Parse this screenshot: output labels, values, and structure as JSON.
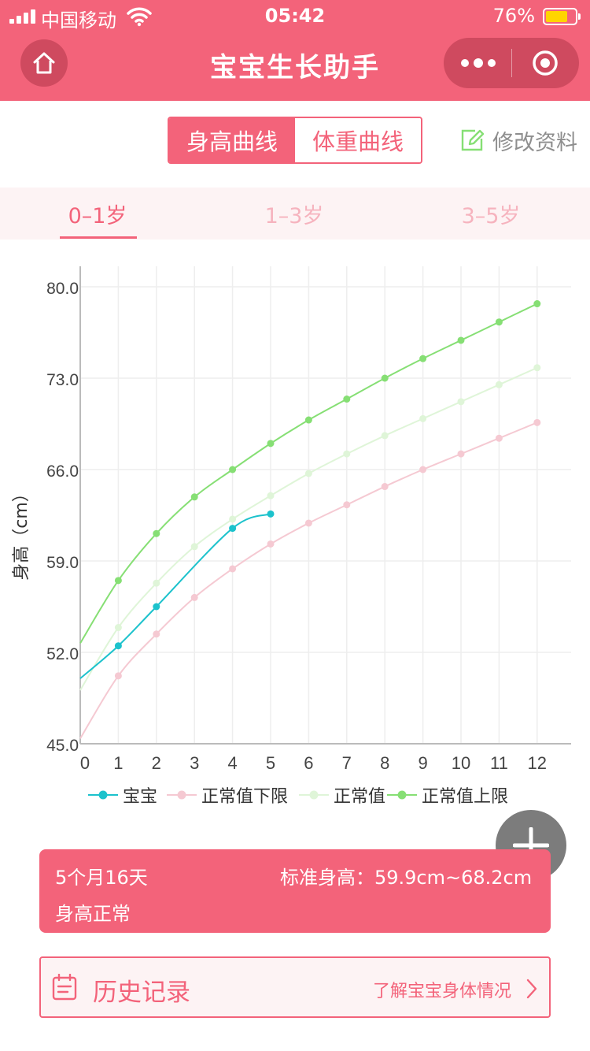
{
  "status_bar": {
    "carrier": "中国移动",
    "time": "05:42",
    "battery": "76%"
  },
  "nav": {
    "title": "宝宝生长助手"
  },
  "segment": {
    "height_label": "身高曲线",
    "weight_label": "体重曲线"
  },
  "edit_label": "修改资料",
  "age_tabs": [
    "0–1岁",
    "1–3岁",
    "3–5岁"
  ],
  "info": {
    "age": "5个月16天",
    "standard": "标准身高：59.9cm~68.2cm",
    "status": "身高正常"
  },
  "history": {
    "title": "历史记录",
    "hint": "了解宝宝身体情况"
  },
  "colors": {
    "accent": "#f3637a",
    "baby": "#1cc2cc",
    "lower": "#f5c9d2",
    "normal": "#dff5d8",
    "upper": "#86df74"
  },
  "chart_data": {
    "type": "line",
    "ylabel": "身高（cm）",
    "xlabel": "",
    "x": [
      0,
      1,
      2,
      3,
      4,
      5,
      6,
      7,
      8,
      9,
      10,
      11,
      12
    ],
    "ylim": [
      45.0,
      80.0
    ],
    "yticks": [
      "45.0",
      "52.0",
      "59.0",
      "66.0",
      "73.0",
      "80.0"
    ],
    "grid": true,
    "legend": "bottom",
    "series": [
      {
        "name": "宝宝",
        "x": [
          0,
          1,
          2,
          4,
          5
        ],
        "values": [
          50.0,
          52.5,
          55.5,
          61.5,
          62.6
        ]
      },
      {
        "name": "正常值下限",
        "x": [
          0,
          1,
          2,
          3,
          4,
          5,
          6,
          7,
          8,
          9,
          10,
          11,
          12
        ],
        "values": [
          45.4,
          50.2,
          53.4,
          56.2,
          58.4,
          60.3,
          61.9,
          63.3,
          64.7,
          66.0,
          67.2,
          68.4,
          69.6
        ]
      },
      {
        "name": "正常值",
        "x": [
          0,
          1,
          2,
          3,
          4,
          5,
          6,
          7,
          8,
          9,
          10,
          11,
          12
        ],
        "values": [
          49.1,
          53.9,
          57.3,
          60.1,
          62.2,
          64.0,
          65.7,
          67.2,
          68.6,
          69.9,
          71.2,
          72.5,
          73.8
        ]
      },
      {
        "name": "正常值上限",
        "x": [
          0,
          1,
          2,
          3,
          4,
          5,
          6,
          7,
          8,
          9,
          10,
          11,
          12
        ],
        "values": [
          52.7,
          57.5,
          61.1,
          63.9,
          66.0,
          68.0,
          69.8,
          71.4,
          73.0,
          74.5,
          75.9,
          77.3,
          78.7
        ]
      }
    ]
  }
}
